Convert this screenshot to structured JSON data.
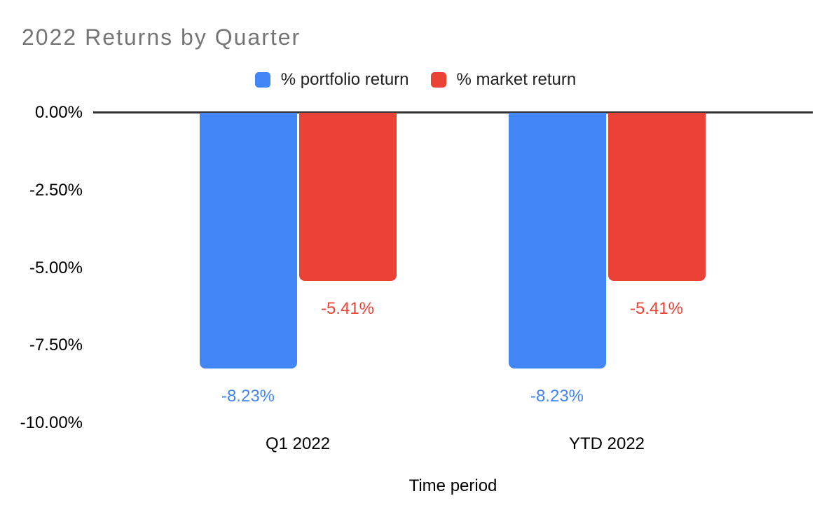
{
  "background_color": "#ffffff",
  "chart_data": {
    "type": "bar",
    "title": "2022 Returns by Quarter",
    "title_color": "#757575",
    "xlabel": "Time period",
    "ylabel": "",
    "categories": [
      "Q1 2022",
      "YTD 2022"
    ],
    "series": [
      {
        "name": "% portfolio return",
        "color": "#4285F4",
        "values": [
          -8.23,
          -8.23
        ],
        "data_labels": [
          "-8.23%",
          "-8.23%"
        ]
      },
      {
        "name": "% market return",
        "color": "#EA4335",
        "values": [
          -5.41,
          -5.41
        ],
        "data_labels": [
          "-5.41%",
          "-5.41%"
        ]
      }
    ],
    "yticks": [
      {
        "value": 0,
        "label": "0.00%"
      },
      {
        "value": -2.5,
        "label": "-2.50%"
      },
      {
        "value": -5,
        "label": "-5.00%"
      },
      {
        "value": -7.5,
        "label": "-7.50%"
      },
      {
        "value": -10,
        "label": "-10.00%"
      }
    ],
    "ylim": [
      -10,
      0
    ],
    "legend_position": "top",
    "grid": false,
    "axis_line_color": "#333333",
    "tick_label_color": "#000000",
    "category_label_color": "#000000"
  }
}
